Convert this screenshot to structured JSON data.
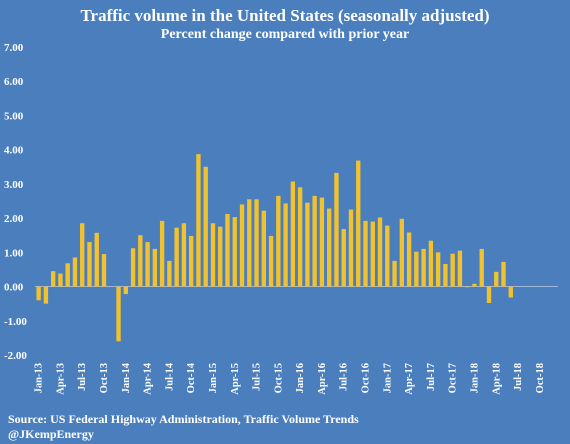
{
  "colors": {
    "background": "#4a7ebd",
    "bar": "#f2c12e",
    "text": "#ffffff",
    "zero_line": "#9fb6d6"
  },
  "chart_data": {
    "type": "bar",
    "title": "Traffic volume in the United States (seasonally adjusted)",
    "subtitle": "Percent change compared with prior year",
    "xlabel": "",
    "ylabel": "",
    "ylim": [
      -2.0,
      7.0
    ],
    "yticks": [
      "7.00",
      "6.00",
      "5.00",
      "4.00",
      "3.00",
      "2.00",
      "1.00",
      "0.00",
      "-1.00",
      "-2.00"
    ],
    "ytick_values": [
      7,
      6,
      5,
      4,
      3,
      2,
      1,
      0,
      -1,
      -2
    ],
    "tick_labels": [
      "Jan-13",
      "Apr-13",
      "Jul-13",
      "Oct-13",
      "Jan-14",
      "Apr-14",
      "Jul-14",
      "Oct-14",
      "Jan-15",
      "Apr-15",
      "Jul-15",
      "Oct-15",
      "Jan-16",
      "Apr-16",
      "Jul-16",
      "Oct-16",
      "Jan-17",
      "Apr-17",
      "Jul-17",
      "Oct-17",
      "Jan-18",
      "Apr-18",
      "Jul-18",
      "Oct-18"
    ],
    "grid": false,
    "legend": "none",
    "categories": [
      "Jan-13",
      "Feb-13",
      "Mar-13",
      "Apr-13",
      "May-13",
      "Jun-13",
      "Jul-13",
      "Aug-13",
      "Sep-13",
      "Oct-13",
      "Nov-13",
      "Dec-13",
      "Jan-14",
      "Feb-14",
      "Mar-14",
      "Apr-14",
      "May-14",
      "Jun-14",
      "Jul-14",
      "Aug-14",
      "Sep-14",
      "Oct-14",
      "Nov-14",
      "Dec-14",
      "Jan-15",
      "Feb-15",
      "Mar-15",
      "Apr-15",
      "May-15",
      "Jun-15",
      "Jul-15",
      "Aug-15",
      "Sep-15",
      "Oct-15",
      "Nov-15",
      "Dec-15",
      "Jan-16",
      "Feb-16",
      "Mar-16",
      "Apr-16",
      "May-16",
      "Jun-16",
      "Jul-16",
      "Aug-16",
      "Sep-16",
      "Oct-16",
      "Nov-16",
      "Dec-16",
      "Jan-17",
      "Feb-17",
      "Mar-17",
      "Apr-17",
      "May-17",
      "Jun-17",
      "Jul-17",
      "Aug-17",
      "Sep-17",
      "Oct-17",
      "Nov-17",
      "Dec-17",
      "Jan-18",
      "Feb-18",
      "Mar-18",
      "Apr-18",
      "May-18",
      "Jun-18",
      "Jul-18",
      "Aug-18",
      "Sep-18",
      "Oct-18",
      "Nov-18",
      "Dec-18"
    ],
    "values": [
      -0.4,
      -0.5,
      0.45,
      0.38,
      0.68,
      0.85,
      1.85,
      1.3,
      1.57,
      0.95,
      0.0,
      -1.6,
      -0.22,
      1.12,
      1.5,
      1.3,
      1.1,
      1.92,
      0.75,
      1.72,
      1.85,
      1.48,
      3.87,
      3.5,
      1.85,
      1.75,
      2.12,
      2.03,
      2.4,
      2.55,
      2.55,
      2.22,
      1.48,
      2.65,
      2.43,
      3.07,
      2.9,
      2.45,
      2.65,
      2.6,
      2.28,
      3.32,
      1.68,
      2.25,
      3.68,
      1.92,
      1.9,
      2.02,
      1.78,
      0.75,
      1.98,
      1.58,
      1.02,
      1.1,
      1.34,
      1.0,
      0.66,
      0.96,
      1.05,
      -0.02,
      0.08,
      1.1,
      -0.48,
      0.43,
      0.72,
      -0.32,
      0.0,
      0.0,
      0.0,
      0.0,
      0.0,
      0.0
    ]
  },
  "footer": {
    "source": "Source: US Federal Highway Administration, Traffic Volume Trends",
    "credit": "@JKempEnergy"
  }
}
